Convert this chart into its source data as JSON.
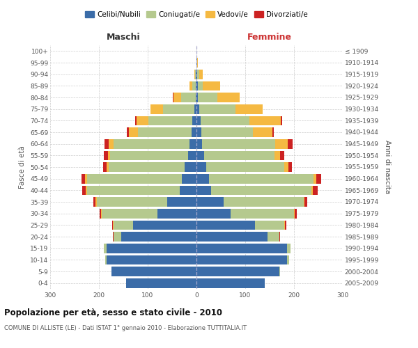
{
  "age_groups": [
    "0-4",
    "5-9",
    "10-14",
    "15-19",
    "20-24",
    "25-29",
    "30-34",
    "35-39",
    "40-44",
    "45-49",
    "50-54",
    "55-59",
    "60-64",
    "65-69",
    "70-74",
    "75-79",
    "80-84",
    "85-89",
    "90-94",
    "95-99",
    "100+"
  ],
  "birth_years": [
    "2005-2009",
    "2000-2004",
    "1995-1999",
    "1990-1994",
    "1985-1989",
    "1980-1984",
    "1975-1979",
    "1970-1974",
    "1965-1969",
    "1960-1964",
    "1955-1959",
    "1950-1954",
    "1945-1949",
    "1940-1944",
    "1935-1939",
    "1930-1934",
    "1925-1929",
    "1920-1924",
    "1915-1919",
    "1910-1914",
    "≤ 1909"
  ],
  "males_celibi": [
    145,
    175,
    185,
    185,
    155,
    130,
    80,
    60,
    35,
    30,
    25,
    17,
    15,
    10,
    8,
    4,
    2,
    1,
    1,
    0,
    0
  ],
  "males_coniugati": [
    0,
    0,
    2,
    5,
    15,
    40,
    115,
    145,
    190,
    195,
    155,
    160,
    155,
    110,
    90,
    65,
    30,
    8,
    2,
    0,
    0
  ],
  "males_vedovi": [
    0,
    0,
    0,
    0,
    0,
    1,
    1,
    2,
    2,
    3,
    4,
    5,
    10,
    18,
    25,
    25,
    15,
    5,
    1,
    0,
    0
  ],
  "males_divorziati": [
    0,
    0,
    0,
    0,
    1,
    2,
    3,
    4,
    8,
    8,
    7,
    8,
    8,
    5,
    3,
    1,
    1,
    0,
    0,
    0,
    0
  ],
  "females_nubili": [
    140,
    170,
    185,
    185,
    145,
    120,
    70,
    55,
    30,
    25,
    20,
    15,
    12,
    10,
    8,
    5,
    3,
    3,
    2,
    1,
    0
  ],
  "females_coniugate": [
    0,
    1,
    5,
    8,
    25,
    60,
    130,
    165,
    205,
    215,
    160,
    145,
    150,
    105,
    100,
    75,
    40,
    10,
    3,
    0,
    0
  ],
  "females_vedove": [
    0,
    0,
    0,
    0,
    0,
    1,
    1,
    2,
    3,
    5,
    8,
    12,
    25,
    40,
    65,
    55,
    45,
    35,
    8,
    2,
    0
  ],
  "females_divorziate": [
    0,
    0,
    0,
    0,
    1,
    3,
    5,
    5,
    10,
    10,
    8,
    8,
    10,
    3,
    2,
    1,
    1,
    0,
    0,
    0,
    0
  ],
  "color_celibi": "#3b6ca8",
  "color_coniugati": "#b5c98e",
  "color_vedovi": "#f5b942",
  "color_divorziati": "#cc2222",
  "title": "Popolazione per età, sesso e stato civile - 2010",
  "subtitle": "COMUNE DI ALLISTE (LE) - Dati ISTAT 1° gennaio 2010 - Elaborazione TUTTITALIA.IT",
  "label_maschi": "Maschi",
  "label_femmine": "Femmine",
  "ylabel_left": "Fasce di età",
  "ylabel_right": "Anni di nascita",
  "legend_labels": [
    "Celibi/Nubili",
    "Coniugati/e",
    "Vedovi/e",
    "Divorziati/e"
  ],
  "xlim": 300,
  "background_color": "#ffffff",
  "grid_color": "#cccccc"
}
